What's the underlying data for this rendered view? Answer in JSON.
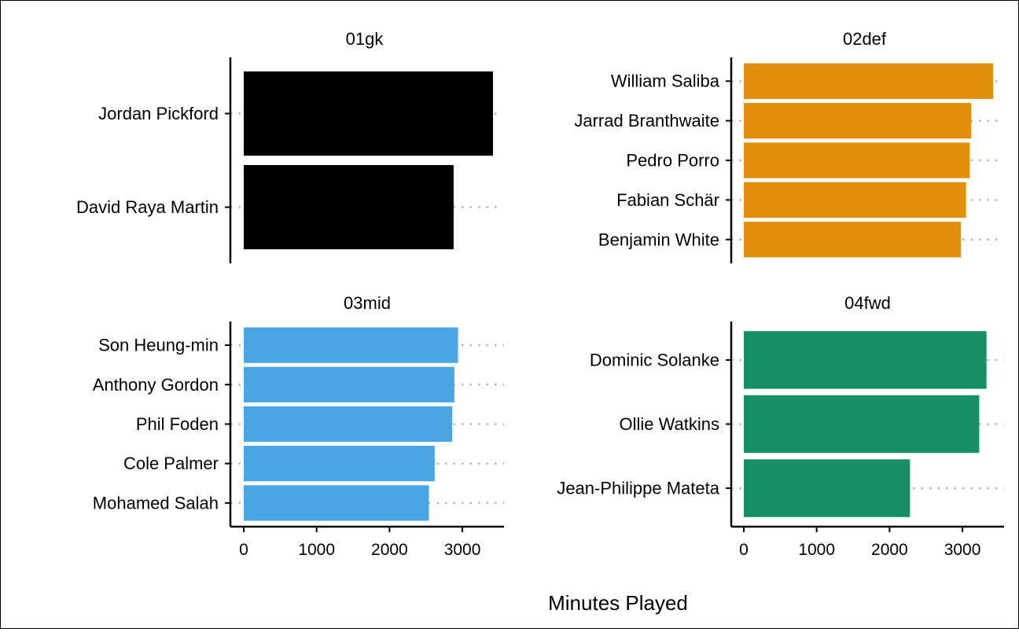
{
  "chart_data": {
    "type": "bar",
    "orientation": "horizontal",
    "xlabel": "Minutes Played",
    "xlim": [
      0,
      3500
    ],
    "xticks": [
      0,
      1000,
      2000,
      3000
    ],
    "grid": "dotted guide from bar end to panel edge",
    "legend": "none",
    "panels": [
      {
        "title": "01gk",
        "color": "#000000",
        "categories": [
          "Jordan Pickford",
          "David Raya Martin"
        ],
        "values": [
          3420,
          2880
        ]
      },
      {
        "title": "02def",
        "color": "#E08E0B",
        "categories": [
          "William Saliba",
          "Jarrad Branthwaite",
          "Pedro Porro",
          "Fabian Schär",
          "Benjamin White"
        ],
        "values": [
          3420,
          3120,
          3100,
          3050,
          2980
        ]
      },
      {
        "title": "03mid",
        "color": "#4AA5E3",
        "categories": [
          "Son Heung-min",
          "Anthony Gordon",
          "Phil Foden",
          "Cole Palmer",
          "Mohamed Salah"
        ],
        "values": [
          2940,
          2890,
          2860,
          2620,
          2540
        ]
      },
      {
        "title": "04fwd",
        "color": "#168F62",
        "categories": [
          "Dominic Solanke",
          "Ollie Watkins",
          "Jean-Philippe Mateta"
        ],
        "values": [
          3330,
          3230,
          2280
        ]
      }
    ]
  }
}
